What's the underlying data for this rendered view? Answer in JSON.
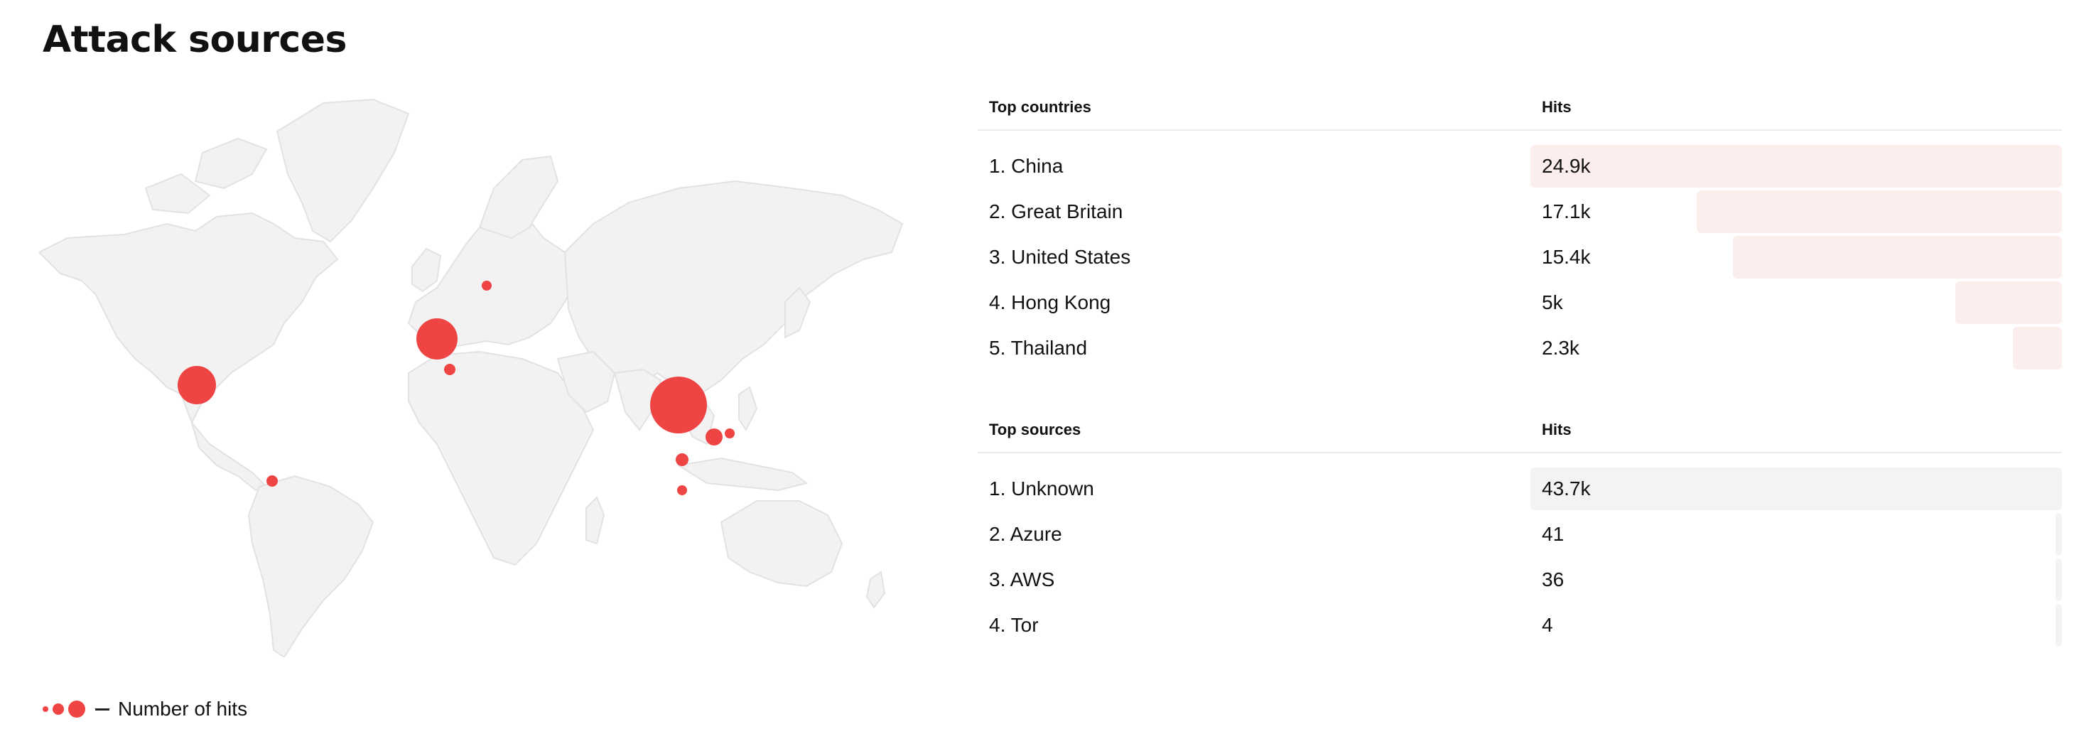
{
  "page": {
    "title": "Attack sources"
  },
  "map": {
    "colors": {
      "land": "#f2f2f3",
      "border": "#e2e2e5",
      "dot": "#ef4444"
    },
    "markers": [
      {
        "name": "China",
        "hits": 24900
      },
      {
        "name": "Great Britain",
        "hits": 17100
      },
      {
        "name": "United States",
        "hits": 15400
      },
      {
        "name": "Hong Kong",
        "hits": 5000
      },
      {
        "name": "Thailand",
        "hits": 2300
      }
    ]
  },
  "legend": {
    "label": "Number of hits"
  },
  "top_countries": {
    "header_name": "Top countries",
    "header_hits": "Hits",
    "bar_color": "#fdeeee",
    "rows": [
      {
        "label": "1. China",
        "hits": "24.9k",
        "value": 24900
      },
      {
        "label": "2. Great Britain",
        "hits": "17.1k",
        "value": 17100
      },
      {
        "label": "3. United States",
        "hits": "15.4k",
        "value": 15400
      },
      {
        "label": "4. Hong Kong",
        "hits": "5k",
        "value": 5000
      },
      {
        "label": "5. Thailand",
        "hits": "2.3k",
        "value": 2300
      }
    ]
  },
  "top_sources": {
    "header_name": "Top sources",
    "header_hits": "Hits",
    "bar_color": "#f3f3f4",
    "rows": [
      {
        "label": "1. Unknown",
        "hits": "43.7k",
        "value": 43700
      },
      {
        "label": "2. Azure",
        "hits": "41",
        "value": 41
      },
      {
        "label": "3. AWS",
        "hits": "36",
        "value": 36
      },
      {
        "label": "4. Tor",
        "hits": "4",
        "value": 4
      }
    ]
  }
}
